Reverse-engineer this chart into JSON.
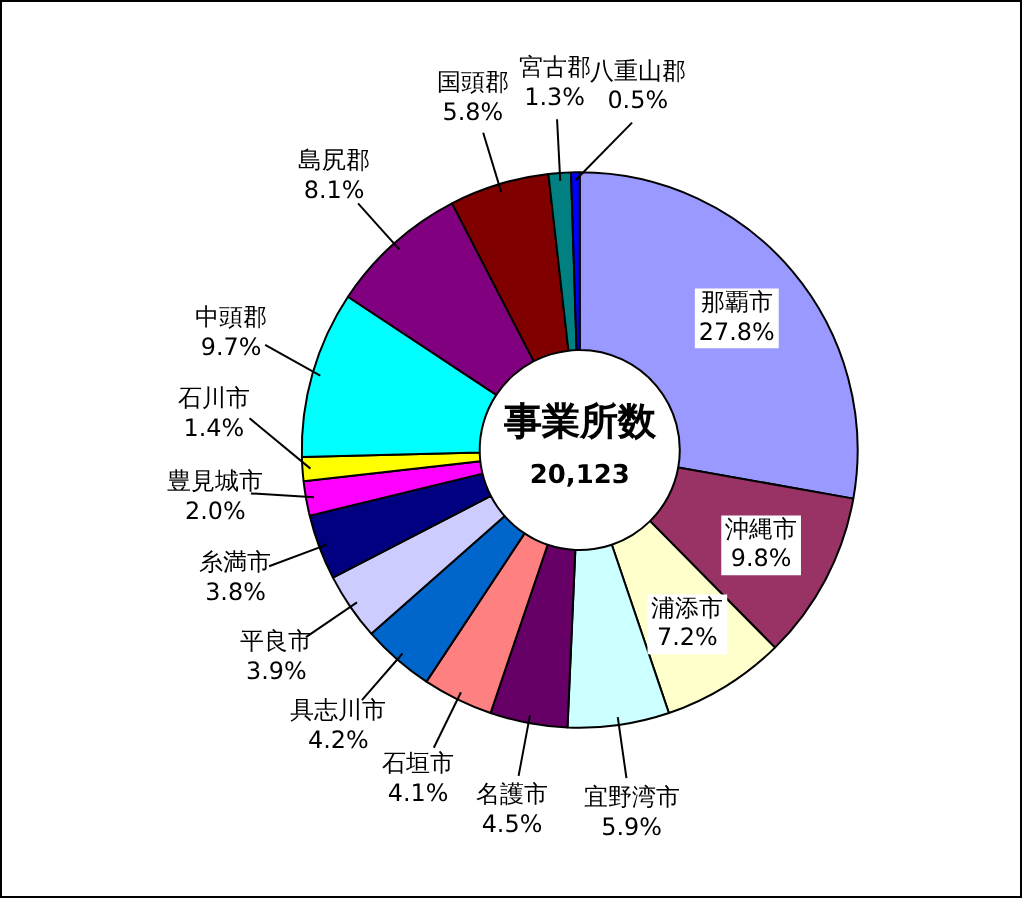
{
  "chart_data": {
    "type": "donut",
    "categories": [
      "那覇市",
      "沖縄市",
      "浦添市",
      "宜野湾市",
      "名護市",
      "石垣市",
      "具志川市",
      "平良市",
      "糸満市",
      "豊見城市",
      "石川市",
      "中頭郡",
      "島尻郡",
      "国頭郡",
      "宮古郡",
      "八重山郡"
    ],
    "values": [
      27.8,
      9.8,
      7.2,
      5.9,
      4.5,
      4.1,
      4.2,
      3.9,
      3.8,
      2.0,
      1.4,
      9.7,
      8.1,
      5.8,
      1.3,
      0.5
    ],
    "value_labels": [
      "27.8%",
      "9.8%",
      "7.2%",
      "5.9%",
      "4.5%",
      "4.1%",
      "4.2%",
      "3.9%",
      "3.8%",
      "2.0%",
      "1.4%",
      "9.7%",
      "8.1%",
      "5.8%",
      "1.3%",
      "0.5%"
    ],
    "colors": [
      "#9999ff",
      "#993366",
      "#ffffcc",
      "#ccffff",
      "#660066",
      "#ff8080",
      "#0066cc",
      "#ccccff",
      "#000080",
      "#ff00ff",
      "#ffff00",
      "#00ffff",
      "#800080",
      "#800000",
      "#008080",
      "#0000ff"
    ],
    "annotations": [
      "事業所数",
      "20,123"
    ]
  }
}
